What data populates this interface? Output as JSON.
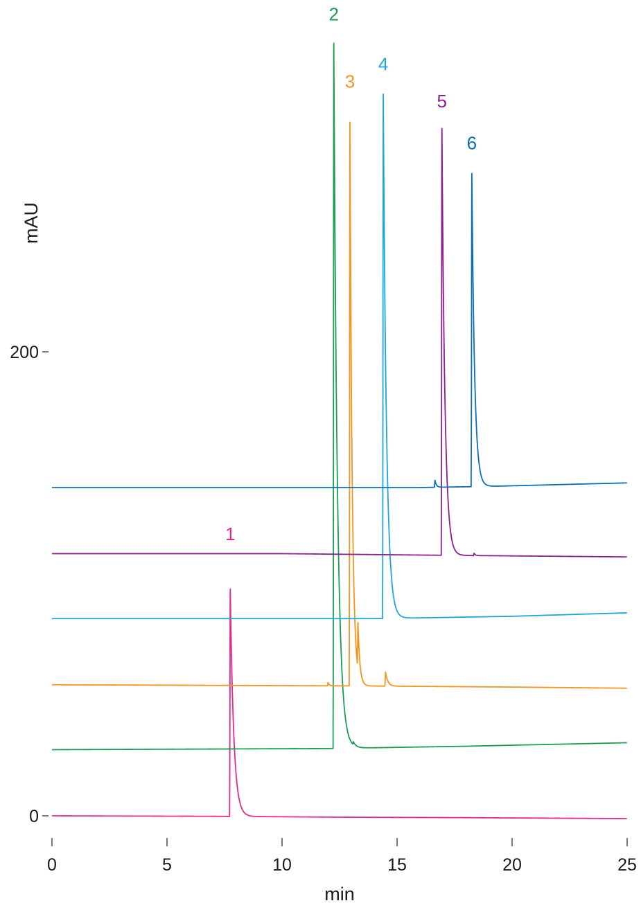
{
  "chart_data": {
    "type": "line",
    "title": "",
    "xlabel": "min",
    "ylabel": "mAU",
    "xlim": [
      0,
      25
    ],
    "ylim": [
      -14,
      304
    ],
    "grid": false,
    "x_ticks": [
      0,
      5,
      10,
      15,
      20,
      25
    ],
    "y_ticks": [
      0,
      200
    ],
    "series": [
      {
        "label": "1",
        "color": "#e7298a",
        "baseline": [
          [
            0,
            0
          ],
          [
            7.0,
            -0.2
          ],
          [
            12.5,
            -0.6
          ],
          [
            18.0,
            -0.8
          ],
          [
            25,
            -1.2
          ]
        ],
        "peaks": [
          {
            "t": 7.75,
            "height": 98,
            "tail": 0.15
          }
        ]
      },
      {
        "label": "2",
        "color": "#1a9e54",
        "baseline": [
          [
            0,
            28.5
          ],
          [
            12.0,
            29.0
          ],
          [
            18.0,
            30.0
          ],
          [
            25,
            31.5
          ]
        ],
        "peaks": [
          {
            "t": 12.25,
            "height": 304,
            "tail": 0.16
          },
          {
            "t": 13.1,
            "height": 1.3,
            "tail": 0.1
          }
        ]
      },
      {
        "label": "3",
        "color": "#f7941d",
        "baseline": [
          [
            0,
            56.5
          ],
          [
            13.0,
            56.0
          ],
          [
            20.0,
            55.5
          ],
          [
            25,
            55.0
          ]
        ],
        "peaks": [
          {
            "t": 12.95,
            "height": 243,
            "tail": 0.1
          },
          {
            "t": 13.3,
            "height": 20,
            "tail": 0.08
          },
          {
            "t": 14.5,
            "height": 6,
            "tail": 0.1
          },
          {
            "t": 12.0,
            "height": 1.4,
            "tail": 0.05
          }
        ]
      },
      {
        "label": "4",
        "color": "#1aa7e0",
        "baseline": [
          [
            0,
            85.0
          ],
          [
            14.0,
            85.0
          ],
          [
            20.0,
            86.0
          ],
          [
            25,
            87.5
          ]
        ],
        "peaks": [
          {
            "t": 14.4,
            "height": 226,
            "tail": 0.14
          }
        ]
      },
      {
        "label": "5",
        "color": "#8c1f8e",
        "baseline": [
          [
            0,
            113.0
          ],
          [
            10.0,
            113.0
          ],
          [
            18.0,
            112.2
          ],
          [
            25,
            111.6
          ]
        ],
        "peaks": [
          {
            "t": 16.95,
            "height": 184,
            "tail": 0.13
          },
          {
            "t": 18.35,
            "height": 1.0,
            "tail": 0.05
          }
        ]
      },
      {
        "label": "6",
        "color": "#0a6fb8",
        "baseline": [
          [
            0,
            141.5
          ],
          [
            16.0,
            141.5
          ],
          [
            19.0,
            142.0
          ],
          [
            25,
            143.5
          ]
        ],
        "peaks": [
          {
            "t": 18.25,
            "height": 135,
            "tail": 0.12
          },
          {
            "t": 16.65,
            "height": 3.0,
            "tail": 0.06
          }
        ]
      }
    ],
    "peak_labels": [
      {
        "text": "1",
        "x": 7.75,
        "y": 121.5,
        "color": "#e7298a"
      },
      {
        "text": "2",
        "x": 12.25,
        "y": 345.5,
        "color": "#1a9e54"
      },
      {
        "text": "3",
        "x": 12.95,
        "y": 316.5,
        "color": "#f7941d"
      },
      {
        "text": "4",
        "x": 14.4,
        "y": 324.0,
        "color": "#1aa7e0"
      },
      {
        "text": "5",
        "x": 16.95,
        "y": 308.0,
        "color": "#8c1f8e"
      },
      {
        "text": "6",
        "x": 18.25,
        "y": 290.0,
        "color": "#0a6fb8"
      }
    ]
  }
}
